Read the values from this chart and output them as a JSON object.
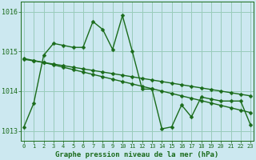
{
  "title": "Graphe pression niveau de la mer (hPa)",
  "bg_color": "#cce8f0",
  "grid_color": "#99ccbb",
  "line_color": "#1a6b1a",
  "markersize": 2.5,
  "linewidth": 1.0,
  "xlim": [
    -0.3,
    23.3
  ],
  "ylim": [
    1012.75,
    1016.25
  ],
  "yticks": [
    1013,
    1014,
    1015,
    1016
  ],
  "xticks": [
    0,
    1,
    2,
    3,
    4,
    5,
    6,
    7,
    8,
    9,
    10,
    11,
    12,
    13,
    14,
    15,
    16,
    17,
    18,
    19,
    20,
    21,
    22,
    23
  ],
  "font_color": "#1a6b1a",
  "xlabel_fontsize": 6.5,
  "ytick_fontsize": 6.0,
  "xtick_fontsize": 5.0,
  "s1_y": [
    1013.1,
    1013.7,
    1014.9,
    1015.2,
    1015.15,
    1015.1,
    1015.1,
    1015.75,
    1015.55,
    1015.05,
    1015.9,
    1015.0,
    1014.05,
    1014.05,
    1013.05,
    1013.1,
    1013.65,
    1013.35,
    1013.85,
    1013.8,
    1013.75,
    1013.75,
    1013.75,
    1013.15
  ],
  "s2_y": [
    1014.82,
    1014.77,
    1014.72,
    1014.66,
    1014.6,
    1014.54,
    1014.48,
    1014.42,
    1014.36,
    1014.3,
    1014.24,
    1014.18,
    1014.12,
    1014.06,
    1014.0,
    1013.94,
    1013.88,
    1013.82,
    1013.76,
    1013.7,
    1013.64,
    1013.58,
    1013.52,
    1013.46
  ],
  "s3_y": [
    1014.8,
    1014.76,
    1014.72,
    1014.68,
    1014.64,
    1014.6,
    1014.56,
    1014.52,
    1014.48,
    1014.44,
    1014.4,
    1014.36,
    1014.32,
    1014.28,
    1014.24,
    1014.2,
    1014.16,
    1014.12,
    1014.08,
    1014.04,
    1014.0,
    1013.96,
    1013.92,
    1013.88
  ]
}
